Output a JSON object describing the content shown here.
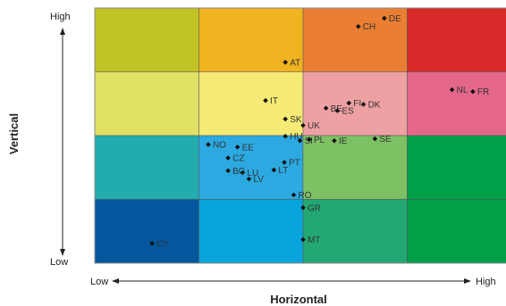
{
  "chart_data": {
    "type": "scatter",
    "xlabel": "Horizontal",
    "ylabel": "Vertical",
    "x_low_label": "Low",
    "x_high_label": "High",
    "y_low_label": "Low",
    "y_high_label": "High",
    "xlim": [
      0,
      4
    ],
    "ylim": [
      0,
      4
    ],
    "grid": {
      "cols": 4,
      "rows": 4,
      "colors": [
        [
          "#c0c427",
          "#f1b31f",
          "#ea7f33",
          "#d92a2a"
        ],
        [
          "#dfe165",
          "#f5ea75",
          "#eda1a3",
          "#e4678a"
        ],
        [
          "#22acae",
          "#2ca9e0",
          "#7ec165",
          "#00a04b"
        ],
        [
          "#03589d",
          "#0aa4dc",
          "#23a874",
          "#009f48"
        ]
      ]
    },
    "points": [
      {
        "label": "DE",
        "x": 2.78,
        "y": 3.84
      },
      {
        "label": "CH",
        "x": 2.53,
        "y": 3.71
      },
      {
        "label": "AT",
        "x": 1.83,
        "y": 3.15
      },
      {
        "label": "NL",
        "x": 3.43,
        "y": 2.72
      },
      {
        "label": "FR",
        "x": 3.63,
        "y": 2.69
      },
      {
        "label": "IT",
        "x": 1.64,
        "y": 2.55
      },
      {
        "label": "FI",
        "x": 2.44,
        "y": 2.51
      },
      {
        "label": "DK",
        "x": 2.58,
        "y": 2.49
      },
      {
        "label": "BE",
        "x": 2.22,
        "y": 2.43
      },
      {
        "label": "ES",
        "x": 2.33,
        "y": 2.39
      },
      {
        "label": "SK",
        "x": 1.83,
        "y": 2.26
      },
      {
        "label": "UK",
        "x": 2.0,
        "y": 2.16
      },
      {
        "label": "HU",
        "x": 1.83,
        "y": 1.99
      },
      {
        "label": "SI",
        "x": 1.97,
        "y": 1.92
      },
      {
        "label": "PL",
        "x": 2.06,
        "y": 1.94
      },
      {
        "label": "IE",
        "x": 2.3,
        "y": 1.92
      },
      {
        "label": "SE",
        "x": 2.69,
        "y": 1.95
      },
      {
        "label": "NO",
        "x": 1.09,
        "y": 1.86
      },
      {
        "label": "EE",
        "x": 1.37,
        "y": 1.82
      },
      {
        "label": "CZ",
        "x": 1.28,
        "y": 1.65
      },
      {
        "label": "PT",
        "x": 1.82,
        "y": 1.58
      },
      {
        "label": "LT",
        "x": 1.72,
        "y": 1.46
      },
      {
        "label": "LU",
        "x": 1.42,
        "y": 1.42
      },
      {
        "label": "LV",
        "x": 1.48,
        "y": 1.32
      },
      {
        "label": "BG",
        "x": 1.28,
        "y": 1.45
      },
      {
        "label": "RO",
        "x": 1.91,
        "y": 1.07
      },
      {
        "label": "GR",
        "x": 2.0,
        "y": 0.87
      },
      {
        "label": "MT",
        "x": 2.0,
        "y": 0.37
      },
      {
        "label": "CY",
        "x": 0.55,
        "y": 0.31
      }
    ]
  }
}
